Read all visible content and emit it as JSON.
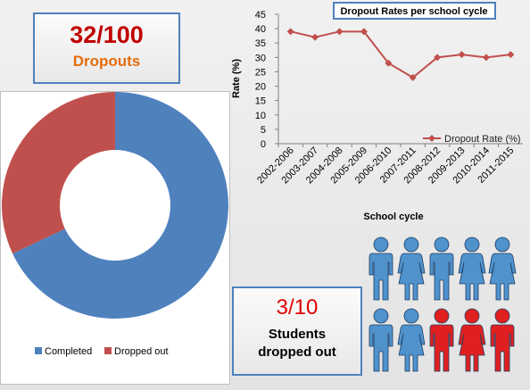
{
  "stat_top": {
    "value": "32/100",
    "label": "Dropouts"
  },
  "stat_bottom": {
    "value": "3/10",
    "label_line1": "Students",
    "label_line2": "dropped out"
  },
  "colors": {
    "completed": "#4f81bd",
    "dropped": "#c0504d",
    "line": "#c0504d",
    "person_blue": "#4f92cc",
    "person_red": "#e02020",
    "frame": "#4f81bd"
  },
  "chart_data": [
    {
      "type": "pie",
      "variant": "doughnut",
      "categories": [
        "Completed",
        "Dropped out"
      ],
      "values": [
        68,
        32
      ],
      "legend_position": "bottom"
    },
    {
      "type": "line",
      "title": "Dropout Rates per school cycle",
      "xlabel": "School cycle",
      "ylabel": "Rate (%)",
      "categories": [
        "2002-2006",
        "2003-2007",
        "2004-2008",
        "2005-2009",
        "2006-2010",
        "2007-2011",
        "2008-2012",
        "2009-2013",
        "2010-2014",
        "2011-2015"
      ],
      "series": [
        {
          "name": "Dropout Rate  (%)",
          "values": [
            39,
            37,
            39,
            39,
            28,
            23,
            30,
            31,
            30,
            31
          ]
        }
      ],
      "ylim": [
        0,
        45
      ],
      "yticks": [
        0,
        5,
        10,
        15,
        20,
        25,
        30,
        35,
        40,
        45
      ],
      "grid": false,
      "legend_position": "bottom-right"
    }
  ],
  "pictogram": {
    "total": 10,
    "dropped": 3,
    "people": [
      {
        "gender": "male",
        "status": "completed"
      },
      {
        "gender": "female",
        "status": "completed"
      },
      {
        "gender": "male",
        "status": "completed"
      },
      {
        "gender": "female",
        "status": "completed"
      },
      {
        "gender": "female",
        "status": "completed"
      },
      {
        "gender": "male",
        "status": "completed"
      },
      {
        "gender": "female",
        "status": "completed"
      },
      {
        "gender": "male",
        "status": "dropped"
      },
      {
        "gender": "female",
        "status": "dropped"
      },
      {
        "gender": "male",
        "status": "dropped"
      }
    ]
  }
}
